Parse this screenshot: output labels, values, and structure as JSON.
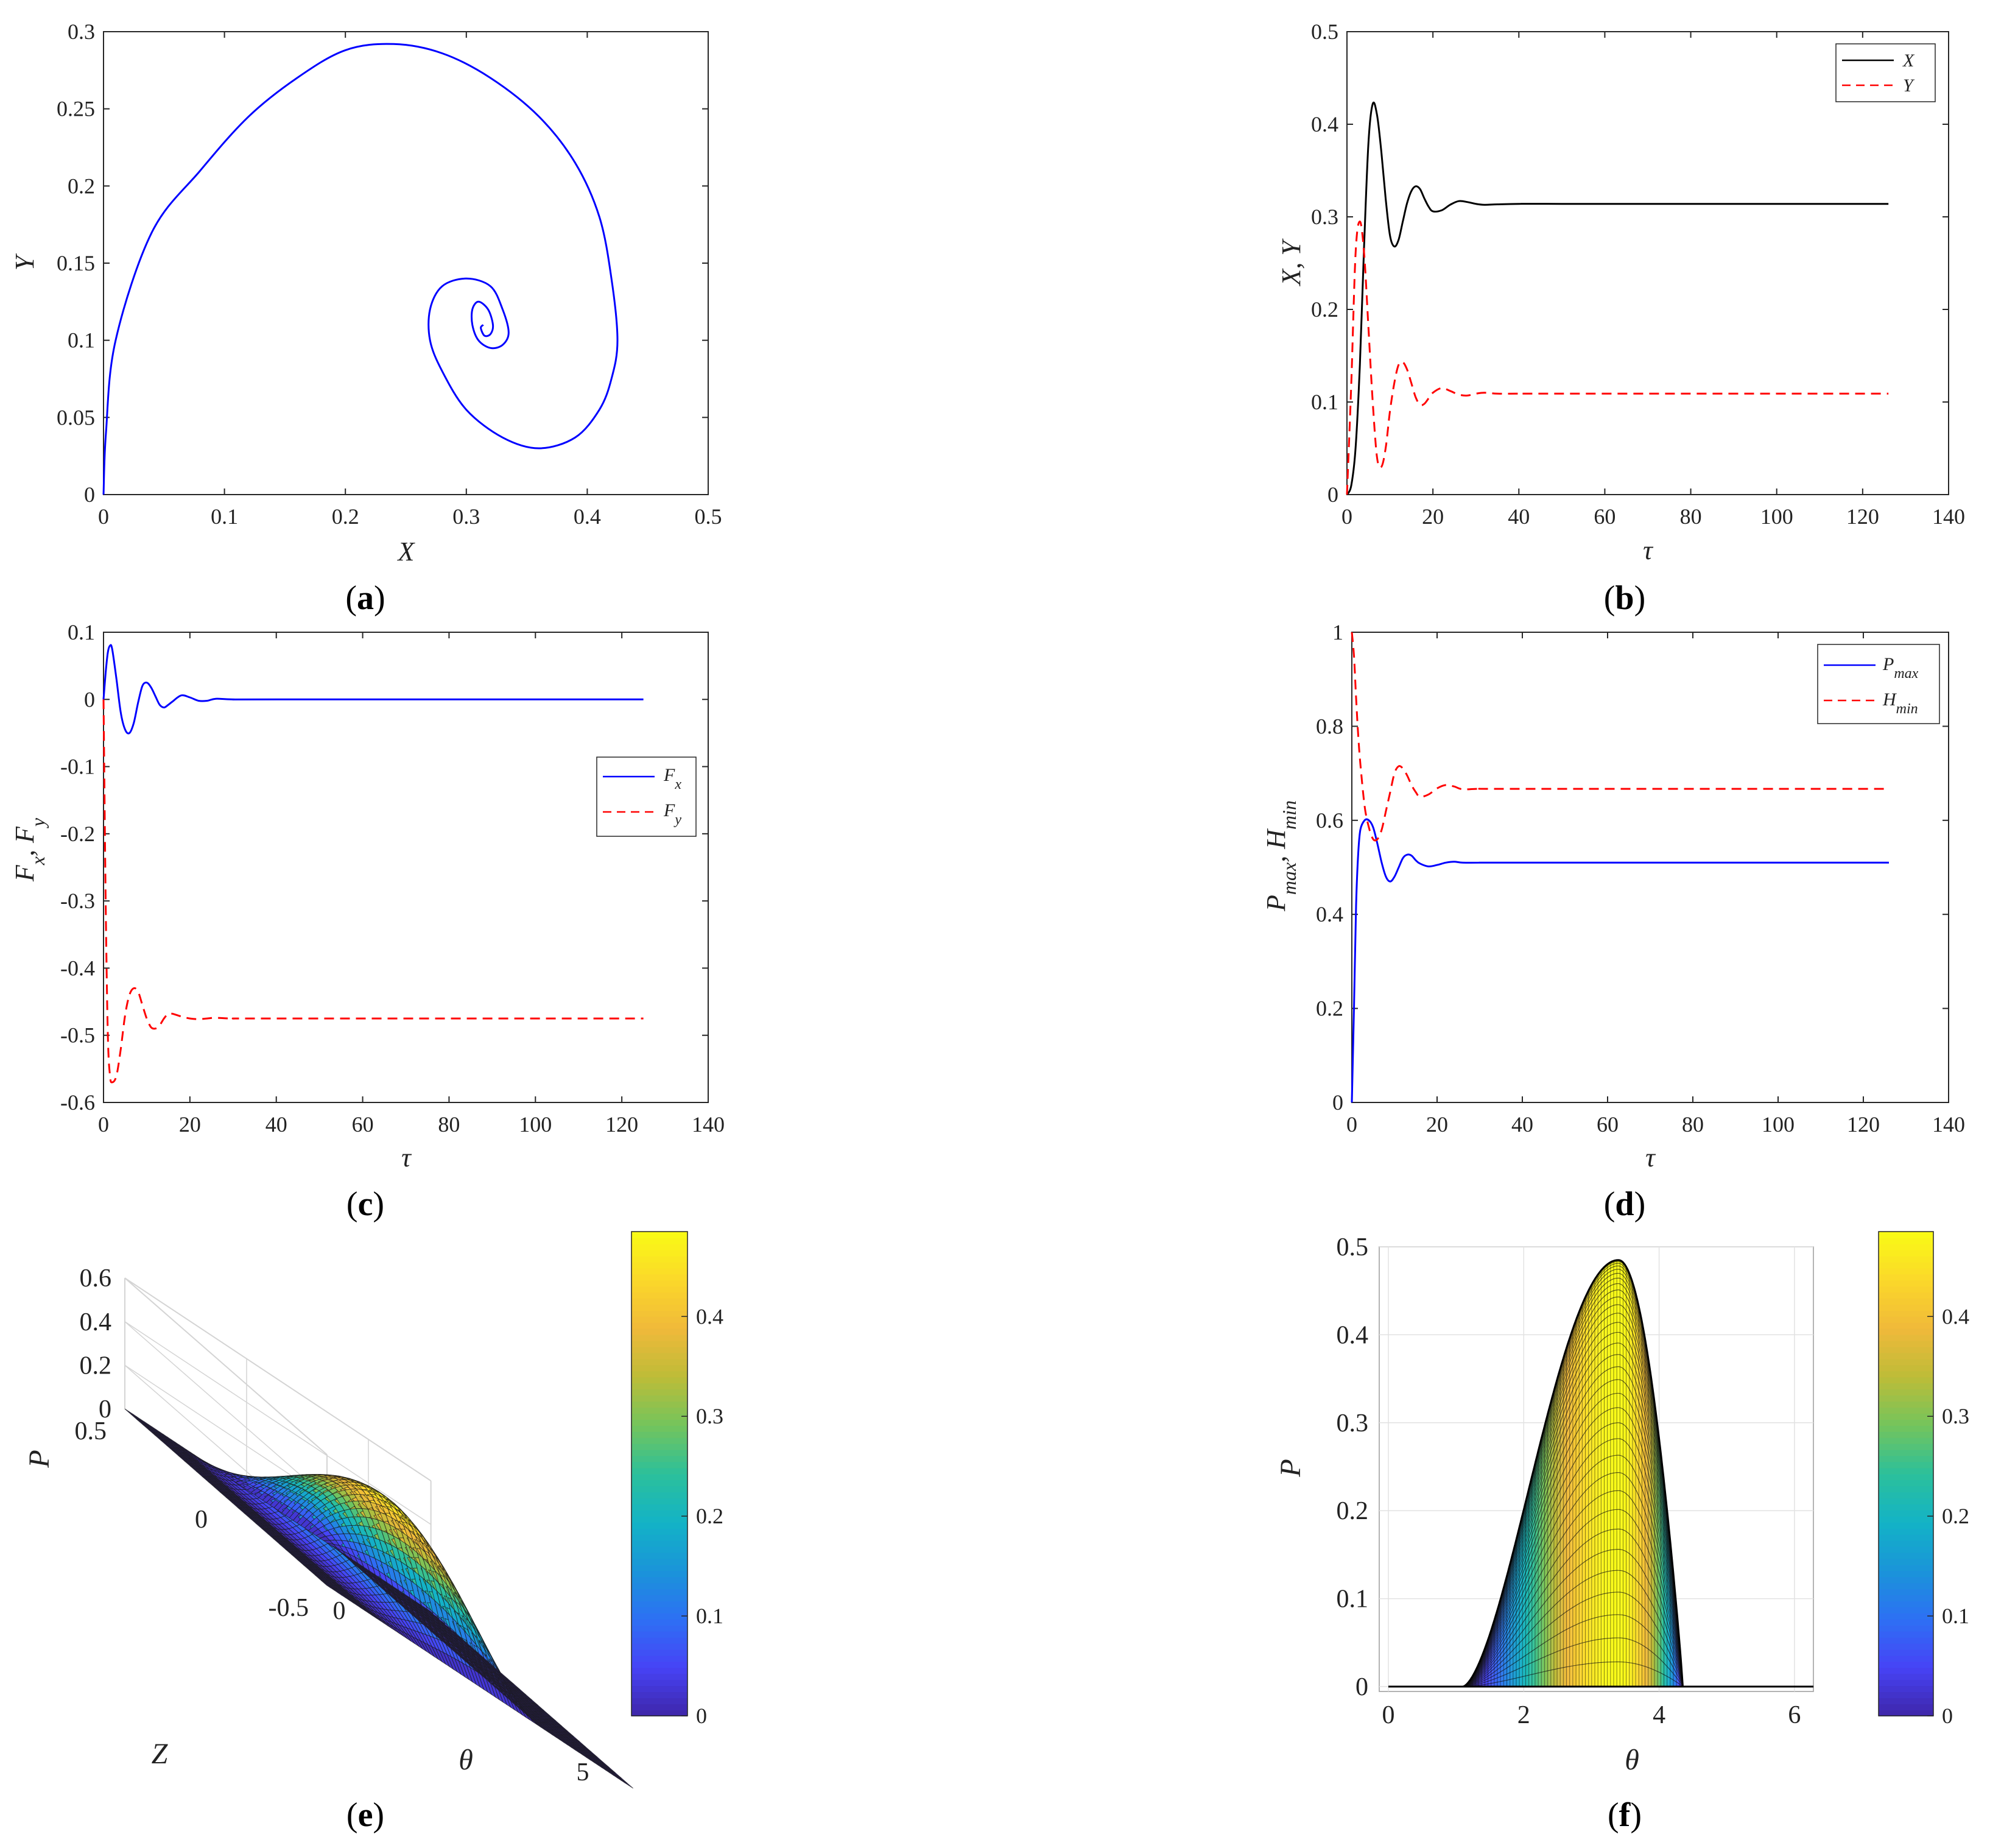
{
  "chart_data": [
    {
      "panel": "(a)",
      "type": "line",
      "xlabel": "X",
      "ylabel": "Y",
      "xlim": [
        0,
        0.5
      ],
      "ylim": [
        0,
        0.3
      ],
      "xticks": [
        "0",
        "0.1",
        "0.2",
        "0.3",
        "0.4",
        "0.5"
      ],
      "yticks": [
        "0",
        "0.05",
        "0.1",
        "0.15",
        "0.2",
        "0.25",
        "0.3"
      ],
      "grid": false,
      "series": [
        {
          "color": "#0000ff",
          "x": [
            0,
            0.002,
            0.01,
            0.04,
            0.08,
            0.12,
            0.16,
            0.2,
            0.24,
            0.28,
            0.32,
            0.36,
            0.39,
            0.41,
            0.42,
            0.425,
            0.42,
            0.41,
            0.39,
            0.36,
            0.33,
            0.3,
            0.28,
            0.27,
            0.27,
            0.28,
            0.3,
            0.32,
            0.33,
            0.335,
            0.33,
            0.32,
            0.31,
            0.305,
            0.305,
            0.31,
            0.318,
            0.322,
            0.32,
            0.315,
            0.312,
            0.314
          ],
          "y": [
            0,
            0.04,
            0.1,
            0.17,
            0.21,
            0.245,
            0.27,
            0.288,
            0.292,
            0.286,
            0.27,
            0.245,
            0.215,
            0.18,
            0.14,
            0.1,
            0.075,
            0.055,
            0.037,
            0.03,
            0.037,
            0.055,
            0.08,
            0.1,
            0.12,
            0.135,
            0.14,
            0.135,
            0.12,
            0.105,
            0.097,
            0.095,
            0.1,
            0.11,
            0.12,
            0.125,
            0.12,
            0.11,
            0.104,
            0.103,
            0.108,
            0.11
          ]
        }
      ]
    },
    {
      "panel": "(b)",
      "type": "line",
      "xlabel": "τ",
      "ylabel": "X, Y",
      "xlim": [
        0,
        140
      ],
      "ylim": [
        0,
        0.5
      ],
      "xticks": [
        "0",
        "20",
        "40",
        "60",
        "80",
        "100",
        "120",
        "140"
      ],
      "yticks": [
        "0",
        "0.1",
        "0.2",
        "0.3",
        "0.4",
        "0.5"
      ],
      "grid": false,
      "legend_position": "top-right",
      "series": [
        {
          "name": "X",
          "color": "#000000",
          "dash": false,
          "x": [
            0,
            1,
            2,
            3,
            4,
            5,
            6,
            7,
            8,
            9,
            10,
            11,
            12,
            13,
            14,
            15,
            16,
            17,
            18,
            19,
            20,
            22,
            24,
            26,
            28,
            30,
            32,
            35,
            40,
            50,
            126
          ],
          "y": [
            0,
            0.01,
            0.05,
            0.14,
            0.27,
            0.38,
            0.422,
            0.41,
            0.37,
            0.32,
            0.28,
            0.268,
            0.275,
            0.295,
            0.315,
            0.328,
            0.333,
            0.33,
            0.32,
            0.311,
            0.306,
            0.307,
            0.313,
            0.317,
            0.316,
            0.314,
            0.313,
            0.3135,
            0.314,
            0.314,
            0.314
          ]
        },
        {
          "name": "Y",
          "color": "#ff0000",
          "dash": true,
          "x": [
            0,
            1,
            2,
            3,
            4,
            5,
            6,
            7,
            8,
            9,
            10,
            11,
            12,
            13,
            14,
            15,
            16,
            17,
            18,
            19,
            20,
            22,
            24,
            26,
            28,
            30,
            32,
            35,
            40,
            50,
            126
          ],
          "y": [
            0,
            0.12,
            0.26,
            0.295,
            0.26,
            0.18,
            0.1,
            0.04,
            0.03,
            0.05,
            0.09,
            0.12,
            0.14,
            0.143,
            0.135,
            0.12,
            0.105,
            0.097,
            0.098,
            0.104,
            0.11,
            0.115,
            0.112,
            0.108,
            0.107,
            0.109,
            0.11,
            0.109,
            0.109,
            0.109,
            0.109
          ]
        }
      ]
    },
    {
      "panel": "(c)",
      "type": "line",
      "xlabel": "τ",
      "ylabel": "F_x, F_y",
      "xlim": [
        0,
        140
      ],
      "ylim": [
        -0.6,
        0.1
      ],
      "xticks": [
        "0",
        "20",
        "40",
        "60",
        "80",
        "100",
        "120",
        "140"
      ],
      "yticks": [
        "-0.6",
        "-0.5",
        "-0.4",
        "-0.3",
        "-0.2",
        "-0.1",
        "0",
        "0.1"
      ],
      "grid": false,
      "legend_position": "right",
      "series": [
        {
          "name": "F_x",
          "color": "#0000ff",
          "dash": false,
          "x": [
            0,
            0.5,
            1,
            1.5,
            2,
            3,
            4,
            5,
            6,
            7,
            8,
            9,
            10,
            11,
            12,
            13,
            14,
            15,
            16,
            18,
            20,
            22,
            24,
            26,
            30,
            40,
            125
          ],
          "y": [
            0,
            0.04,
            0.07,
            0.08,
            0.075,
            0.03,
            -0.02,
            -0.045,
            -0.05,
            -0.035,
            -0.005,
            0.02,
            0.025,
            0.018,
            0.005,
            -0.008,
            -0.012,
            -0.008,
            -0.003,
            0.006,
            0.003,
            -0.002,
            -0.002,
            0.001,
            0.0,
            0.0,
            0.0
          ]
        },
        {
          "name": "F_y",
          "color": "#ff0000",
          "dash": true,
          "x": [
            0,
            0.5,
            1,
            1.5,
            2,
            3,
            4,
            5,
            6,
            7,
            8,
            9,
            10,
            11,
            12,
            13,
            14,
            15,
            16,
            18,
            20,
            22,
            24,
            26,
            30,
            40,
            125
          ],
          "y": [
            0,
            -0.3,
            -0.5,
            -0.56,
            -0.57,
            -0.56,
            -0.52,
            -0.47,
            -0.44,
            -0.43,
            -0.435,
            -0.455,
            -0.475,
            -0.488,
            -0.49,
            -0.485,
            -0.475,
            -0.468,
            -0.468,
            -0.472,
            -0.475,
            -0.476,
            -0.475,
            -0.474,
            -0.475,
            -0.475,
            -0.475
          ]
        }
      ]
    },
    {
      "panel": "(d)",
      "type": "line",
      "xlabel": "τ",
      "ylabel": "P_max, H_min",
      "xlim": [
        0,
        140
      ],
      "ylim": [
        0,
        1
      ],
      "xticks": [
        "0",
        "20",
        "40",
        "60",
        "80",
        "100",
        "120",
        "140"
      ],
      "yticks": [
        "0",
        "0.2",
        "0.4",
        "0.6",
        "0.8",
        "1"
      ],
      "grid": false,
      "legend_position": "top-right",
      "series": [
        {
          "name": "P_max",
          "color": "#0000ff",
          "dash": false,
          "x": [
            0,
            0.5,
            1,
            1.5,
            2,
            3,
            4,
            5,
            6,
            7,
            8,
            9,
            10,
            11,
            12,
            13,
            14,
            15,
            16,
            18,
            20,
            22,
            24,
            26,
            30,
            40,
            126
          ],
          "y": [
            0,
            0.2,
            0.42,
            0.53,
            0.58,
            0.6,
            0.6,
            0.585,
            0.55,
            0.51,
            0.48,
            0.47,
            0.48,
            0.5,
            0.52,
            0.527,
            0.525,
            0.515,
            0.508,
            0.502,
            0.505,
            0.51,
            0.512,
            0.51,
            0.51,
            0.51,
            0.51
          ]
        },
        {
          "name": "H_min",
          "color": "#ff0000",
          "dash": true,
          "x": [
            0,
            0.5,
            1,
            1.5,
            2,
            3,
            4,
            5,
            6,
            7,
            8,
            9,
            10,
            11,
            12,
            13,
            14,
            15,
            16,
            18,
            20,
            22,
            24,
            26,
            30,
            40,
            126
          ],
          "y": [
            1.0,
            0.95,
            0.86,
            0.78,
            0.72,
            0.63,
            0.585,
            0.56,
            0.56,
            0.58,
            0.62,
            0.66,
            0.7,
            0.715,
            0.71,
            0.695,
            0.675,
            0.66,
            0.65,
            0.655,
            0.668,
            0.675,
            0.672,
            0.666,
            0.667,
            0.667,
            0.667
          ]
        }
      ]
    },
    {
      "panel": "(e)",
      "type": "surface",
      "xlabel": "θ",
      "ylabel": "Z",
      "zlabel": "P",
      "zlim": [
        0,
        0.6
      ],
      "zticks": [
        "0",
        "0.2",
        "0.4",
        "0.6"
      ],
      "zaxis_ticks": [
        "0.5",
        "0",
        "-0.5"
      ],
      "theta_ticks": [
        "0",
        "5"
      ],
      "colorbar_ticks": [
        "0",
        "0.1",
        "0.2",
        "0.3",
        "0.4"
      ],
      "peak_value": 0.485,
      "peak_theta": 3.4,
      "pressure_start_theta": 1.1,
      "pressure_end_theta": 4.35
    },
    {
      "panel": "(f)",
      "type": "surface",
      "xlabel": "θ",
      "ylabel": "P",
      "xlim": [
        0,
        6.28
      ],
      "ylim": [
        0,
        0.5
      ],
      "xticks": [
        "0",
        "2",
        "4",
        "6"
      ],
      "yticks": [
        "0",
        "0.1",
        "0.2",
        "0.3",
        "0.4",
        "0.5"
      ],
      "colorbar_ticks": [
        "0",
        "0.1",
        "0.2",
        "0.3",
        "0.4"
      ],
      "peak_value": 0.485,
      "peak_theta": 3.4,
      "pressure_start_theta": 1.1,
      "pressure_end_theta": 4.35
    }
  ],
  "panels": {
    "a": {
      "label_open": "(",
      "label_letter": "a",
      "label_close": ")"
    },
    "b": {
      "label_open": "(",
      "label_letter": "b",
      "label_close": ")"
    },
    "c": {
      "label_open": "(",
      "label_letter": "c",
      "label_close": ")"
    },
    "d": {
      "label_open": "(",
      "label_letter": "d",
      "label_close": ")"
    },
    "e": {
      "label_open": "(",
      "label_letter": "e",
      "label_close": ")"
    },
    "f": {
      "label_open": "(",
      "label_letter": "f",
      "label_close": ")"
    }
  },
  "axis_labels": {
    "a": {
      "x": "X",
      "y": "Y"
    },
    "b": {
      "x": "τ",
      "y": "X, Y"
    },
    "c": {
      "x": "τ",
      "y_F": "F",
      "y_x": "x",
      "y_sep": ", ",
      "y_F2": "F",
      "y_y": "y"
    },
    "d": {
      "x": "τ",
      "y_P": "P",
      "y_max": "max",
      "y_sep": ", ",
      "y_H": "H",
      "y_min": "min"
    },
    "e": {
      "z": "P",
      "y": "Z",
      "x": "θ"
    },
    "f": {
      "y": "P",
      "x": "θ"
    }
  },
  "legends": {
    "b": {
      "x": "X",
      "y": "Y"
    },
    "c": {
      "f1": "F",
      "f1_sub": "x",
      "f2": "F",
      "f2_sub": "y"
    },
    "d": {
      "p": "P",
      "p_sub": "max",
      "h": "H",
      "h_sub": "min"
    }
  },
  "colors": {
    "blue": "#0000ff",
    "red": "#ff0000",
    "black": "#000000",
    "parula": [
      "#3e26a8",
      "#4743f6",
      "#2d70f4",
      "#1a94d9",
      "#13b3c6",
      "#2cc09b",
      "#73c45c",
      "#bdbc38",
      "#f0b93a",
      "#fbd82a",
      "#f9fb15"
    ]
  }
}
